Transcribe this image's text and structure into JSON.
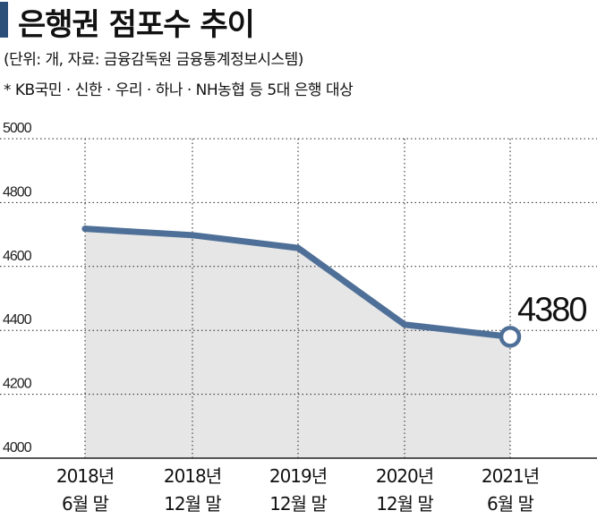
{
  "header": {
    "title": "은행권 점포수 추이",
    "subtitle": "(단위: 개, 자료: 금융감독원 금융통계정보시스템)",
    "note": "* KB국민 · 신한 · 우리 · 하나 · NH농협 등 5대 은행 대상"
  },
  "colors": {
    "line": "#4e6f97",
    "area": "#e6e6e6",
    "accent_bar": "#2b4f79",
    "grid": "#222222"
  },
  "chart_data": {
    "type": "area",
    "title": "은행권 점포수 추이",
    "xlabel": "",
    "ylabel": "",
    "ylim": [
      4000,
      5000
    ],
    "yticks": [
      "4000",
      "4200",
      "4400",
      "4600",
      "4800",
      "5000"
    ],
    "grid": true,
    "categories": [
      [
        "2018년",
        "6월 말"
      ],
      [
        "2018년",
        "12월 말"
      ],
      [
        "2019년",
        "12월 말"
      ],
      [
        "2020년",
        "12월 말"
      ],
      [
        "2021년",
        "6월 말"
      ]
    ],
    "series": [
      {
        "values": [
          4718,
          4698,
          4658,
          4418,
          4380
        ]
      }
    ],
    "annotation": {
      "index": 4,
      "text": "4380"
    }
  }
}
